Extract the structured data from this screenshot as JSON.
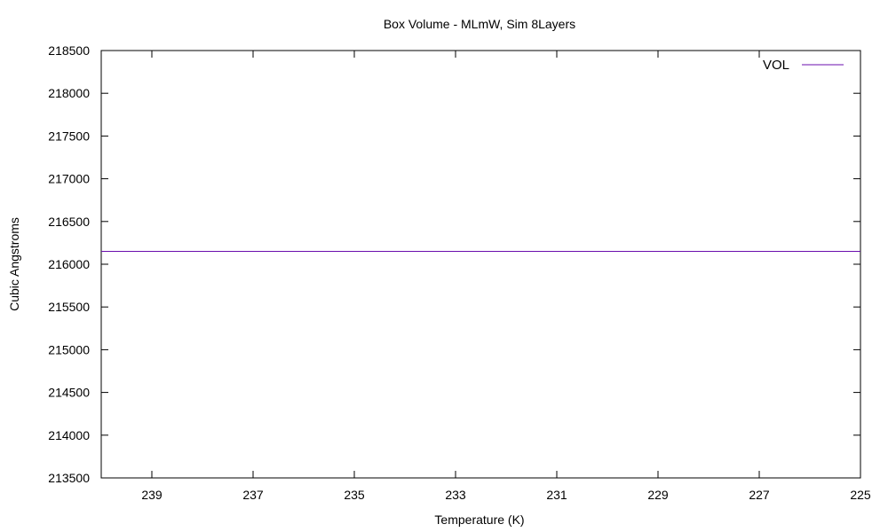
{
  "chart_data": {
    "type": "line",
    "title": "Box Volume - MLmW, Sim 8Layers",
    "xlabel": "Temperature (K)",
    "ylabel": "Cubic Angstroms",
    "x_reversed": true,
    "xlim": [
      240,
      225
    ],
    "ylim": [
      213500,
      218500
    ],
    "x_ticks": [
      239,
      237,
      235,
      233,
      231,
      229,
      227,
      225
    ],
    "y_ticks": [
      213500,
      214000,
      214500,
      215000,
      215500,
      216000,
      216500,
      217000,
      217500,
      218000,
      218500
    ],
    "grid": false,
    "legend_position": "top-right",
    "series": [
      {
        "name": "VOL",
        "color": "#6a0dad",
        "x": [
          240,
          225
        ],
        "y": [
          216150,
          216150
        ]
      }
    ]
  }
}
